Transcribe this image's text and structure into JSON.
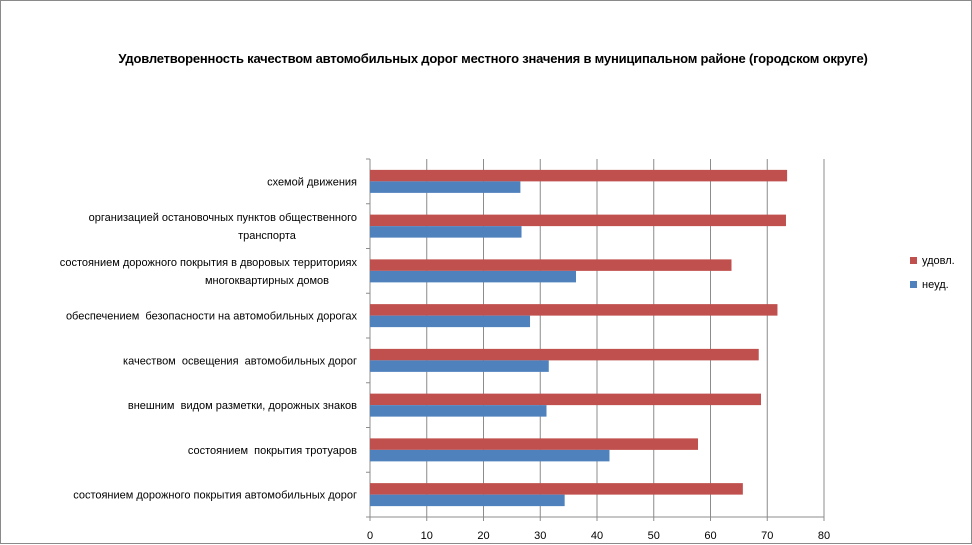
{
  "chart_data": {
    "type": "bar",
    "orientation": "horizontal",
    "title": "Удовлетворенность качеством автомобильных дорог местного значения в муниципальном районе (городском округе)",
    "categories": [
      [
        "схемой движения"
      ],
      [
        "организацией остановочных пунктов общественного",
        "транспорта"
      ],
      [
        "состоянием дорожного покрытия в дворовых территориях",
        "многоквартирных домов"
      ],
      [
        "обеспечением  безопасности на автомобильных дорогах"
      ],
      [
        "качеством  освещения  автомобильных дорог"
      ],
      [
        "внешним  видом разметки, дорожных знаков"
      ],
      [
        "состоянием  покрытия тротуаров"
      ],
      [
        "состоянием дорожного покрытия автомобильных дорог"
      ]
    ],
    "series": [
      {
        "name": "удовл.",
        "color": "#C0504D",
        "values": [
          73.5,
          73.3,
          63.7,
          71.8,
          68.5,
          68.9,
          57.8,
          65.7
        ]
      },
      {
        "name": "неуд.",
        "color": "#4F81BD",
        "values": [
          26.5,
          26.7,
          36.3,
          28.2,
          31.5,
          31.1,
          42.2,
          34.3
        ]
      }
    ],
    "xlim": [
      0,
      80
    ],
    "xticks": [
      "0",
      "10",
      "20",
      "30",
      "40",
      "50",
      "60",
      "70",
      "80"
    ],
    "grid": true,
    "legend": "right"
  }
}
